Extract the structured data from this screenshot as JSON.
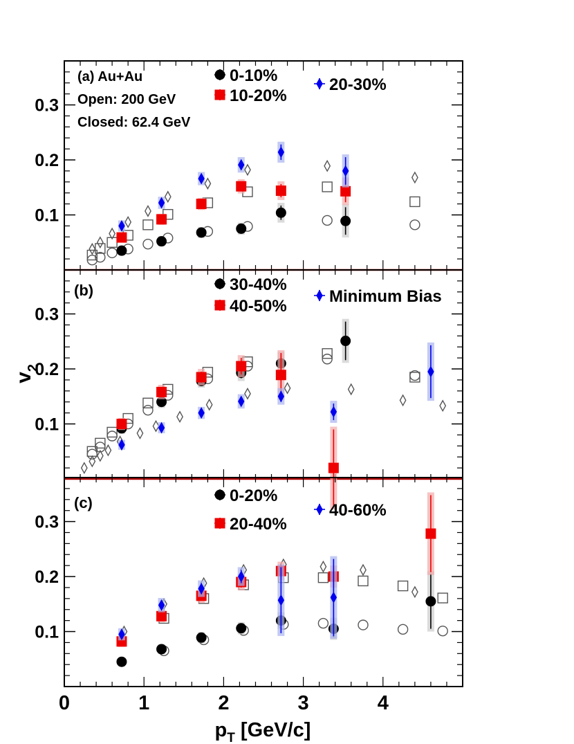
{
  "colors": {
    "black": "#000000",
    "red": "#ee0000",
    "blue": "#0000ee",
    "open": "#555555",
    "red_band": "#f4aaaa",
    "blue_band": "#aab4f0",
    "grey_band": "#cccccc"
  },
  "chart_data": {
    "type": "scatter",
    "xlabel": "p_T [GeV/c]",
    "ylabel": "v_2",
    "x_ticks": [
      "0",
      "1",
      "2",
      "3",
      "4"
    ],
    "y_ticks": [
      "0.1",
      "0.2",
      "0.3"
    ],
    "xlim": [
      0,
      5.0
    ],
    "ylim": [
      0,
      0.38
    ],
    "panels": [
      {
        "id": "a",
        "labels": [
          "(a) Au+Au",
          "Open: 200 GeV",
          "Closed: 62.4 GeV"
        ],
        "closed": [
          {
            "name": "0-10%",
            "marker": "circle",
            "color": "#000000",
            "x": [
              0.72,
              1.22,
              1.72,
              2.22,
              2.72,
              3.53
            ],
            "y": [
              0.035,
              0.052,
              0.068,
              0.075,
              0.104,
              0.089
            ],
            "err": [
              0.003,
              0.004,
              0.005,
              0.006,
              0.013,
              0.025
            ]
          },
          {
            "name": "10-20%",
            "marker": "square",
            "color": "#ee0000",
            "x": [
              0.72,
              1.22,
              1.72,
              2.22,
              2.72,
              3.53
            ],
            "y": [
              0.059,
              0.092,
              0.12,
              0.152,
              0.144,
              0.143
            ],
            "err": [
              0.004,
              0.005,
              0.006,
              0.008,
              0.012,
              0.02
            ]
          },
          {
            "name": "20-30%",
            "marker": "diamond",
            "color": "#0000ee",
            "x": [
              0.72,
              1.22,
              1.72,
              2.22,
              2.72,
              3.53
            ],
            "y": [
              0.08,
              0.122,
              0.166,
              0.191,
              0.214,
              0.18
            ],
            "err": [
              0.005,
              0.006,
              0.007,
              0.009,
              0.014,
              0.025
            ]
          }
        ],
        "open": [
          {
            "marker": "circle",
            "x": [
              0.35,
              0.45,
              0.6,
              0.8,
              1.05,
              1.3,
              1.8,
              2.3,
              3.3,
              4.4
            ],
            "y": [
              0.018,
              0.023,
              0.031,
              0.038,
              0.047,
              0.058,
              0.07,
              0.079,
              0.09,
              0.082
            ]
          },
          {
            "marker": "square",
            "x": [
              0.35,
              0.45,
              0.6,
              0.8,
              1.05,
              1.3,
              1.8,
              2.3,
              3.3,
              4.4
            ],
            "y": [
              0.027,
              0.039,
              0.05,
              0.063,
              0.082,
              0.101,
              0.122,
              0.142,
              0.151,
              0.124
            ]
          },
          {
            "marker": "diamond",
            "x": [
              0.35,
              0.45,
              0.6,
              0.8,
              1.05,
              1.3,
              1.8,
              2.3,
              3.3,
              4.4
            ],
            "y": [
              0.038,
              0.05,
              0.066,
              0.087,
              0.107,
              0.133,
              0.157,
              0.182,
              0.189,
              0.168
            ]
          }
        ]
      },
      {
        "id": "b",
        "labels": [
          "(b)"
        ],
        "closed": [
          {
            "name": "30-40%",
            "marker": "circle",
            "color": "#000000",
            "x": [
              0.72,
              1.22,
              1.72,
              2.22,
              2.72,
              3.53
            ],
            "y": [
              0.092,
              0.14,
              0.178,
              0.193,
              0.21,
              0.251
            ],
            "err": [
              0.005,
              0.006,
              0.007,
              0.01,
              0.016,
              0.035
            ]
          },
          {
            "name": "40-50%",
            "marker": "square",
            "color": "#ee0000",
            "x": [
              0.72,
              1.22,
              1.72,
              2.22,
              2.72,
              3.38
            ],
            "y": [
              0.1,
              0.158,
              0.185,
              0.205,
              0.189,
              0.02
            ],
            "err": [
              0.006,
              0.008,
              0.01,
              0.015,
              0.04,
              0.07
            ]
          },
          {
            "name": "Minimum Bias",
            "marker": "diamond",
            "color": "#0000ee",
            "x": [
              0.72,
              1.22,
              1.72,
              2.22,
              2.72,
              3.38,
              4.6
            ],
            "y": [
              0.062,
              0.093,
              0.12,
              0.141,
              0.15,
              0.122,
              0.195
            ],
            "err": [
              0.004,
              0.005,
              0.006,
              0.008,
              0.01,
              0.015,
              0.048
            ]
          }
        ],
        "open": [
          {
            "marker": "circle",
            "x": [
              0.35,
              0.45,
              0.6,
              0.8,
              1.05,
              1.3,
              1.8,
              2.3,
              3.3,
              4.4
            ],
            "y": [
              0.045,
              0.058,
              0.078,
              0.1,
              0.125,
              0.152,
              0.182,
              0.205,
              0.218,
              0.188
            ]
          },
          {
            "marker": "square",
            "x": [
              0.35,
              0.45,
              0.6,
              0.8,
              1.05,
              1.3,
              1.8,
              2.3,
              3.3,
              4.4
            ],
            "y": [
              0.05,
              0.065,
              0.085,
              0.11,
              0.138,
              0.163,
              0.194,
              0.213,
              0.228,
              0.185
            ]
          },
          {
            "marker": "diamond",
            "x": [
              0.25,
              0.35,
              0.45,
              0.55,
              0.7,
              0.95,
              1.15,
              1.45,
              1.82,
              2.3,
              2.8,
              3.6,
              4.25,
              4.75
            ],
            "y": [
              0.02,
              0.032,
              0.042,
              0.052,
              0.068,
              0.083,
              0.096,
              0.113,
              0.135,
              0.155,
              0.165,
              0.163,
              0.143,
              0.133
            ]
          }
        ]
      },
      {
        "id": "c",
        "labels": [
          "(c)"
        ],
        "closed": [
          {
            "name": "0-20%",
            "marker": "circle",
            "color": "#000000",
            "x": [
              0.72,
              1.22,
              1.72,
              2.22,
              2.72,
              3.38,
              4.6
            ],
            "y": [
              0.045,
              0.068,
              0.089,
              0.106,
              0.12,
              0.105,
              0.155
            ],
            "err": [
              0.003,
              0.004,
              0.005,
              0.006,
              0.01,
              0.015,
              0.05
            ]
          },
          {
            "name": "20-40%",
            "marker": "square",
            "color": "#ee0000",
            "x": [
              0.72,
              1.22,
              1.72,
              2.22,
              2.72,
              3.38,
              4.6
            ],
            "y": [
              0.082,
              0.128,
              0.165,
              0.19,
              0.21,
              0.2,
              0.278
            ],
            "err": [
              0.005,
              0.006,
              0.008,
              0.01,
              0.012,
              0.015,
              0.07
            ]
          },
          {
            "name": "40-60%",
            "marker": "diamond",
            "color": "#0000ee",
            "x": [
              0.72,
              1.22,
              1.72,
              2.22,
              2.72,
              3.38
            ],
            "y": [
              0.095,
              0.148,
              0.178,
              0.2,
              0.157,
              0.162
            ],
            "err": [
              0.006,
              0.008,
              0.01,
              0.012,
              0.06,
              0.07
            ]
          }
        ],
        "open": [
          {
            "marker": "circle",
            "x": [
              1.25,
              1.75,
              2.25,
              2.75,
              3.25,
              3.75,
              4.25,
              4.75
            ],
            "y": [
              0.065,
              0.085,
              0.102,
              0.113,
              0.115,
              0.112,
              0.104,
              0.101
            ]
          },
          {
            "marker": "square",
            "x": [
              1.25,
              1.75,
              2.25,
              2.75,
              3.25,
              3.75,
              4.25,
              4.75
            ],
            "y": [
              0.124,
              0.16,
              0.185,
              0.198,
              0.198,
              0.192,
              0.183,
              0.161
            ]
          },
          {
            "marker": "diamond",
            "x": [
              0.75,
              1.25,
              1.75,
              2.25,
              2.75,
              3.25,
              3.75,
              4.4
            ],
            "y": [
              0.1,
              0.15,
              0.188,
              0.212,
              0.222,
              0.218,
              0.212,
              0.172
            ]
          }
        ]
      }
    ]
  }
}
